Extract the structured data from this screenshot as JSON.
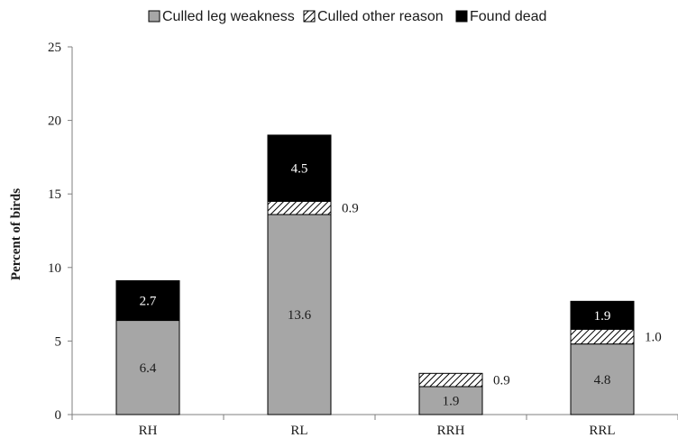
{
  "chart_data": {
    "type": "bar",
    "stacked": true,
    "categories": [
      "RH",
      "RL",
      "RRH",
      "RRL"
    ],
    "series": [
      {
        "name": "Culled leg weakness",
        "values": [
          6.4,
          13.6,
          1.9,
          4.8
        ],
        "color": "#a6a6a6",
        "pattern": "solid"
      },
      {
        "name": "Culled other reason",
        "values": [
          0,
          0.9,
          0.9,
          1.0
        ],
        "color": "#ffffff",
        "pattern": "diagonal-hatch"
      },
      {
        "name": "Found dead",
        "values": [
          2.7,
          4.5,
          0,
          1.9
        ],
        "color": "#000000",
        "pattern": "solid"
      }
    ],
    "data_labels": [
      {
        "category": "RH",
        "series": "Culled leg weakness",
        "text": "6.4"
      },
      {
        "category": "RH",
        "series": "Found dead",
        "text": "2.7"
      },
      {
        "category": "RL",
        "series": "Culled leg weakness",
        "text": "13.6"
      },
      {
        "category": "RL",
        "series": "Culled other reason",
        "text": "0.9"
      },
      {
        "category": "RL",
        "series": "Found dead",
        "text": "4.5"
      },
      {
        "category": "RRH",
        "series": "Culled leg weakness",
        "text": "1.9"
      },
      {
        "category": "RRH",
        "series": "Culled other reason",
        "text": "0.9"
      },
      {
        "category": "RRL",
        "series": "Culled leg weakness",
        "text": "4.8"
      },
      {
        "category": "RRL",
        "series": "Culled other reason",
        "text": "1.0"
      },
      {
        "category": "RRL",
        "series": "Found dead",
        "text": "1.9"
      }
    ],
    "yticks": [
      "0",
      "5",
      "10",
      "15",
      "20",
      "25"
    ],
    "ylim": [
      0,
      25
    ],
    "ylabel": "Percent of birds",
    "xlabel": "",
    "title": "",
    "legend_position": "top",
    "grid": false
  }
}
